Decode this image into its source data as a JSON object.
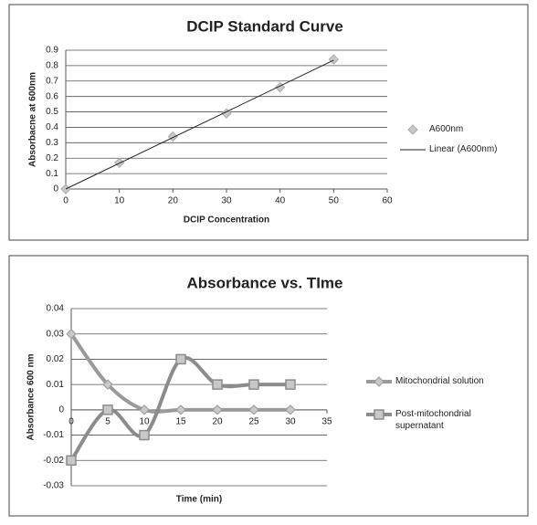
{
  "chart_data": [
    {
      "type": "scatter",
      "title": "DCIP Standard Curve",
      "x_label": "DCIP Concentration",
      "y_label": "Absorbacne at 600nm",
      "x": [
        0,
        10,
        20,
        30,
        40,
        50
      ],
      "series": [
        {
          "name": "A600nm",
          "color": "#aaaaaa",
          "marker": "diamond",
          "values": [
            0,
            0.17,
            0.34,
            0.49,
            0.66,
            0.84
          ]
        },
        {
          "name": "Linear (A600nm)",
          "color": "#222222",
          "type": "line",
          "x": [
            0,
            50
          ],
          "values": [
            0,
            0.835
          ]
        }
      ],
      "xlim": [
        0,
        60
      ],
      "xticks": [
        0,
        10,
        20,
        30,
        40,
        50,
        60
      ],
      "ylim": [
        0,
        0.9
      ],
      "yticks": [
        0,
        0.1,
        0.2,
        0.3,
        0.4,
        0.5,
        0.6,
        0.7,
        0.8,
        0.9
      ],
      "grid": true
    },
    {
      "type": "line",
      "title": "Absorbance vs. TIme",
      "x_label": "Time (min)",
      "y_label": "Absorbance 600 nm",
      "x": [
        0,
        5,
        10,
        15,
        20,
        25,
        30
      ],
      "series": [
        {
          "name": "Mitochondrial solution",
          "color": "#9a9a9a",
          "marker": "diamond",
          "smooth": true,
          "values": [
            0.03,
            0.01,
            0,
            0,
            0,
            0,
            0
          ]
        },
        {
          "name": "Post-mitochondrial supernatant",
          "color": "#8c8c8c",
          "marker": "square",
          "smooth": true,
          "values": [
            -0.02,
            0,
            -0.01,
            0.02,
            0.01,
            0.01,
            0.01
          ]
        }
      ],
      "xlim": [
        0,
        35
      ],
      "xticks": [
        0,
        5,
        10,
        15,
        20,
        25,
        30,
        35
      ],
      "ylim": [
        -0.03,
        0.04
      ],
      "yticks": [
        -0.03,
        -0.02,
        -0.01,
        0,
        0.01,
        0.02,
        0.03,
        0.04
      ],
      "grid": true
    }
  ]
}
